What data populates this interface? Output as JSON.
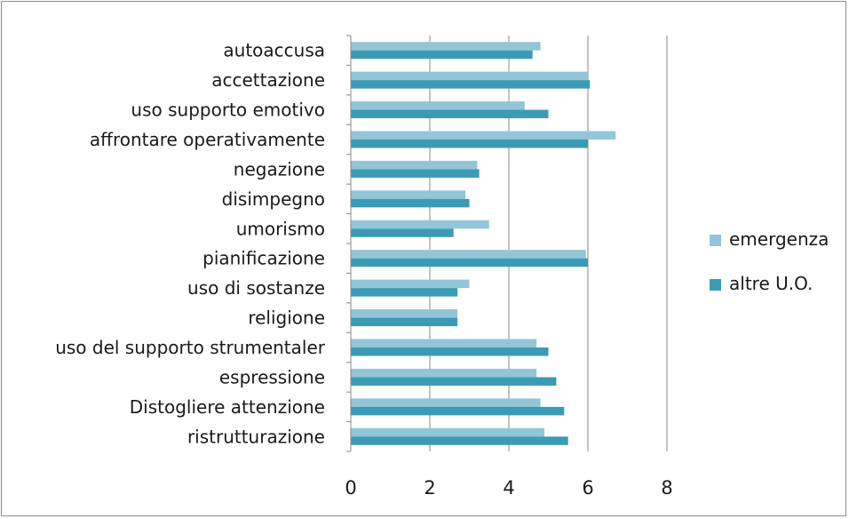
{
  "chart_data": {
    "type": "bar",
    "orientation": "horizontal",
    "categories": [
      "autoaccusa",
      "accettazione",
      "uso supporto emotivo",
      "affrontare operativamente",
      "negazione",
      "disimpegno",
      "umorismo",
      "pianificazione",
      "uso di sostanze",
      "religione",
      "uso del supporto strumentaler",
      "espressione",
      "Distogliere attenzione",
      "ristrutturazione"
    ],
    "series": [
      {
        "name": "emergenza",
        "color": "#92c5d7",
        "values": [
          4.8,
          6.0,
          4.4,
          6.7,
          3.2,
          2.9,
          3.5,
          5.95,
          3.0,
          2.7,
          4.7,
          4.7,
          4.8,
          4.9
        ]
      },
      {
        "name": "altre U.O.",
        "color": "#3c9bb4",
        "values": [
          4.6,
          6.05,
          5.0,
          6.0,
          3.25,
          3.0,
          2.6,
          6.0,
          2.7,
          2.7,
          5.0,
          5.2,
          5.4,
          5.5
        ]
      }
    ],
    "xlim": [
      0,
      8
    ],
    "xticks": [
      "0",
      "2",
      "4",
      "6",
      "8"
    ],
    "grid": "vertical",
    "legend_position": "right"
  }
}
